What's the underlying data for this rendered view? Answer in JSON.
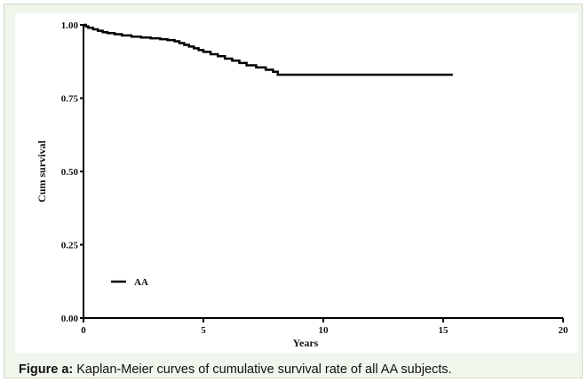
{
  "caption": {
    "label": "Figure a:",
    "text": " Kaplan-Meier curves of cumulative survival rate of all AA subjects."
  },
  "chart_data": {
    "type": "line",
    "title": "",
    "xlabel": "Years",
    "ylabel": "Cum survival",
    "xlim": [
      0,
      20
    ],
    "ylim": [
      0,
      1
    ],
    "x_ticks": [
      0,
      5,
      10,
      15,
      20
    ],
    "y_ticks": [
      0.0,
      0.25,
      0.5,
      0.75,
      1.0
    ],
    "x_tick_labels": [
      "0",
      "5",
      "10",
      "15",
      "20"
    ],
    "y_tick_labels": [
      "0.00",
      "0.25",
      "0.50",
      "0.75",
      "1.00"
    ],
    "grid": false,
    "legend_position": "bottom-left",
    "step": true,
    "color": "#000000",
    "series": [
      {
        "name": "AA",
        "x": [
          0,
          0.1,
          0.2,
          0.4,
          0.6,
          0.8,
          1.0,
          1.3,
          1.6,
          2.0,
          2.4,
          2.8,
          3.2,
          3.5,
          3.8,
          4.0,
          4.2,
          4.4,
          4.6,
          4.8,
          5.0,
          5.3,
          5.6,
          5.9,
          6.2,
          6.5,
          6.8,
          7.2,
          7.6,
          7.9,
          8.1,
          15.4
        ],
        "y": [
          1.0,
          0.995,
          0.99,
          0.985,
          0.98,
          0.975,
          0.972,
          0.968,
          0.964,
          0.96,
          0.957,
          0.954,
          0.951,
          0.948,
          0.944,
          0.938,
          0.932,
          0.926,
          0.92,
          0.914,
          0.908,
          0.9,
          0.893,
          0.885,
          0.878,
          0.87,
          0.862,
          0.855,
          0.847,
          0.84,
          0.83,
          0.83
        ]
      }
    ]
  }
}
